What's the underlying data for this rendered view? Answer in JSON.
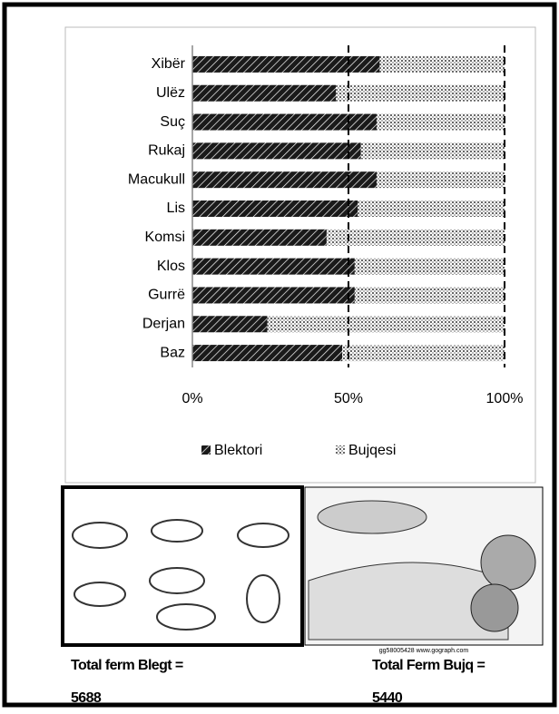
{
  "chart_data": {
    "type": "stacked_barh",
    "categories": [
      "Xibër",
      "Ulëz",
      "Suç",
      "Rukaj",
      "Macukull",
      "Lis",
      "Komsi",
      "Klos",
      "Gurrë",
      "Derjan",
      "Baz"
    ],
    "series": [
      {
        "name": "Blektori",
        "color": "#1a1a1a",
        "values": [
          60,
          46,
          59,
          54,
          59,
          53,
          43,
          52,
          52,
          24,
          48
        ]
      },
      {
        "name": "Bujqesi",
        "color": "#b8b8b8",
        "values": [
          40,
          54,
          41,
          46,
          41,
          47,
          57,
          48,
          48,
          76,
          52
        ]
      }
    ],
    "xlim": [
      0,
      100
    ],
    "xticks": [
      {
        "value": 0,
        "label": "0%"
      },
      {
        "value": 50,
        "label": "50%"
      },
      {
        "value": 100,
        "label": "100%"
      }
    ],
    "grid": true,
    "legend": "bottom"
  },
  "captions": {
    "left_label": "Total ferm Blegt =",
    "left_value": "5688",
    "right_label": "Total Ferm Bujq =",
    "right_value": "5440",
    "watermark": "gg58005428 www.gograph.com"
  }
}
